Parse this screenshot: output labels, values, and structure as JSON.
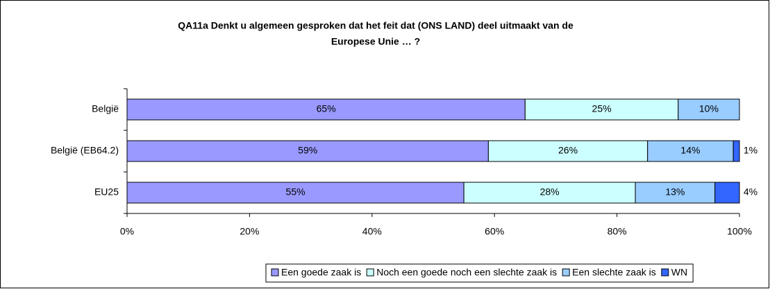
{
  "chart_data": {
    "type": "stacked-bar-horizontal",
    "title": "QA11a Denkt u algemeen gesproken dat het feit dat (ONS LAND) deel uitmaakt van de",
    "subtitle": "Europese Unie …   ?",
    "categories": [
      "België",
      "België (EB64.2)",
      "EU25"
    ],
    "series": [
      {
        "name": "Een goede zaak is",
        "color": "#9999ff",
        "values": [
          65,
          59,
          55
        ],
        "value_labels": [
          "65%",
          "59%",
          "55%"
        ]
      },
      {
        "name": "Noch een goede noch een slechte zaak is",
        "color": "#ccffff",
        "values": [
          25,
          26,
          28
        ],
        "value_labels": [
          "25%",
          "26%",
          "28%"
        ]
      },
      {
        "name": "Een slechte zaak is",
        "color": "#99ccff",
        "values": [
          10,
          14,
          13
        ],
        "value_labels": [
          "10%",
          "14%",
          "13%"
        ]
      },
      {
        "name": "WN",
        "color": "#3366ff",
        "values": [
          null,
          1,
          4
        ],
        "value_labels": [
          null,
          "1%",
          "4%"
        ]
      }
    ],
    "xlim": [
      0,
      100
    ],
    "xticks": [
      {
        "value": 0,
        "label": "0%"
      },
      {
        "value": 20,
        "label": "20%"
      },
      {
        "value": 40,
        "label": "40%"
      },
      {
        "value": 60,
        "label": "60%"
      },
      {
        "value": 80,
        "label": "80%"
      },
      {
        "value": 100,
        "label": "100%"
      }
    ],
    "legend": "bottom"
  }
}
